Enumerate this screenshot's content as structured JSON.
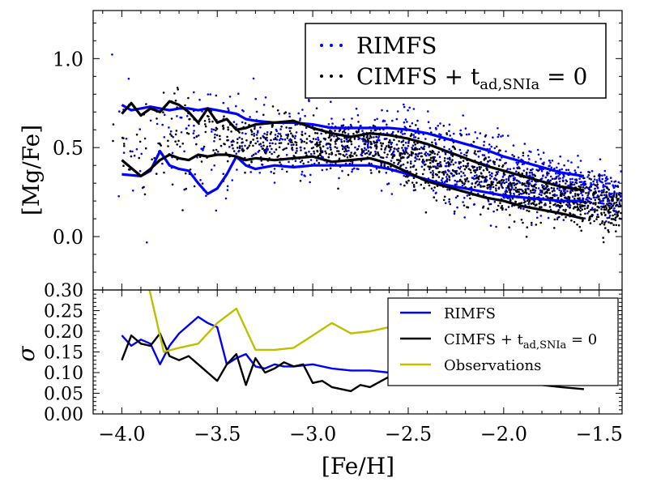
{
  "chart_data": [
    {
      "panel": "top",
      "type": "scatter",
      "xlabel": "[Fe/H]",
      "ylabel": "[Mg/Fe]",
      "xlim": [
        -4.15,
        -1.38
      ],
      "ylim": [
        -0.3,
        1.27
      ],
      "xticks": [
        -4.0,
        -3.5,
        -3.0,
        -2.5,
        -2.0,
        -1.5
      ],
      "yticks": [
        0.0,
        0.5,
        1.0
      ],
      "ytick_labels": [
        "0.0",
        "0.5",
        "1.0"
      ],
      "grid": false,
      "legend_position": "top-right",
      "series": [
        {
          "name": "RIMFS",
          "color": "#0000ff",
          "marker": "dots"
        },
        {
          "name": "CIMFS + t",
          "color": "#000000",
          "marker": "dots"
        }
      ],
      "trend_lines": [
        {
          "series": "RIMFS",
          "bound": "upper",
          "color": "#0000ff",
          "x": [
            -4.0,
            -3.95,
            -3.9,
            -3.85,
            -3.8,
            -3.75,
            -3.7,
            -3.65,
            -3.6,
            -3.55,
            -3.5,
            -3.45,
            -3.4,
            -3.35,
            -3.3,
            -3.2,
            -3.1,
            -3.0,
            -2.9,
            -2.8,
            -2.7,
            -2.6,
            -2.5,
            -2.4,
            -2.3,
            -2.2,
            -2.1,
            -2.0,
            -1.9,
            -1.8,
            -1.7,
            -1.58
          ],
          "y": [
            0.74,
            0.71,
            0.72,
            0.73,
            0.72,
            0.71,
            0.72,
            0.72,
            0.71,
            0.72,
            0.71,
            0.7,
            0.69,
            0.66,
            0.65,
            0.64,
            0.64,
            0.63,
            0.61,
            0.61,
            0.61,
            0.61,
            0.6,
            0.58,
            0.55,
            0.52,
            0.49,
            0.45,
            0.42,
            0.39,
            0.36,
            0.34
          ]
        },
        {
          "series": "RIMFS",
          "bound": "lower",
          "color": "#0000ff",
          "x": [
            -4.0,
            -3.9,
            -3.85,
            -3.8,
            -3.75,
            -3.7,
            -3.65,
            -3.6,
            -3.55,
            -3.5,
            -3.45,
            -3.4,
            -3.35,
            -3.3,
            -3.2,
            -3.1,
            -3.0,
            -2.9,
            -2.8,
            -2.7,
            -2.6,
            -2.5,
            -2.4,
            -2.3,
            -2.2,
            -2.1,
            -2.0,
            -1.9,
            -1.8,
            -1.7,
            -1.58
          ],
          "y": [
            0.35,
            0.34,
            0.37,
            0.48,
            0.4,
            0.38,
            0.37,
            0.3,
            0.24,
            0.27,
            0.35,
            0.45,
            0.4,
            0.38,
            0.4,
            0.39,
            0.4,
            0.4,
            0.4,
            0.4,
            0.38,
            0.35,
            0.32,
            0.29,
            0.27,
            0.25,
            0.23,
            0.22,
            0.21,
            0.2,
            0.2
          ]
        },
        {
          "series": "CIMFS + t",
          "bound": "upper",
          "color": "#000000",
          "x": [
            -4.0,
            -3.95,
            -3.9,
            -3.85,
            -3.8,
            -3.75,
            -3.7,
            -3.65,
            -3.6,
            -3.55,
            -3.5,
            -3.45,
            -3.4,
            -3.35,
            -3.3,
            -3.2,
            -3.1,
            -3.0,
            -2.9,
            -2.8,
            -2.7,
            -2.6,
            -2.5,
            -2.4,
            -2.3,
            -2.2,
            -2.1,
            -2.0,
            -1.9,
            -1.8,
            -1.7,
            -1.58
          ],
          "y": [
            0.69,
            0.75,
            0.68,
            0.72,
            0.7,
            0.76,
            0.74,
            0.7,
            0.64,
            0.72,
            0.64,
            0.66,
            0.6,
            0.61,
            0.63,
            0.64,
            0.65,
            0.61,
            0.58,
            0.56,
            0.58,
            0.57,
            0.55,
            0.52,
            0.48,
            0.44,
            0.4,
            0.37,
            0.34,
            0.31,
            0.28,
            0.26
          ]
        },
        {
          "series": "CIMFS + t",
          "bound": "lower",
          "color": "#000000",
          "x": [
            -4.0,
            -3.9,
            -3.85,
            -3.8,
            -3.75,
            -3.7,
            -3.65,
            -3.6,
            -3.55,
            -3.5,
            -3.45,
            -3.4,
            -3.35,
            -3.3,
            -3.2,
            -3.1,
            -3.0,
            -2.9,
            -2.8,
            -2.7,
            -2.6,
            -2.5,
            -2.4,
            -2.3,
            -2.2,
            -2.1,
            -2.0,
            -1.9,
            -1.8,
            -1.7,
            -1.58
          ],
          "y": [
            0.43,
            0.34,
            0.38,
            0.43,
            0.46,
            0.44,
            0.43,
            0.46,
            0.45,
            0.46,
            0.46,
            0.45,
            0.43,
            0.44,
            0.43,
            0.44,
            0.45,
            0.42,
            0.43,
            0.44,
            0.41,
            0.36,
            0.31,
            0.28,
            0.25,
            0.22,
            0.2,
            0.17,
            0.15,
            0.13,
            0.1
          ]
        }
      ]
    },
    {
      "panel": "bottom",
      "type": "line",
      "xlabel": "[Fe/H]",
      "ylabel": "σ",
      "xlim": [
        -4.15,
        -1.38
      ],
      "ylim": [
        0.0,
        0.3
      ],
      "xticks": [
        -4.0,
        -3.5,
        -3.0,
        -2.5,
        -2.0,
        -1.5
      ],
      "xtick_labels": [
        "−4.0",
        "−3.5",
        "−3.0",
        "−2.5",
        "−2.0",
        "−1.5"
      ],
      "yticks": [
        0.0,
        0.05,
        0.1,
        0.15,
        0.2,
        0.25,
        0.3
      ],
      "ytick_labels": [
        "0.00",
        "0.05",
        "0.10",
        "0.15",
        "0.20",
        "0.25",
        "0.30"
      ],
      "grid": false,
      "legend_position": "right",
      "series": [
        {
          "name": "RIMFS",
          "color": "#0000ff",
          "x": [
            -4.0,
            -3.95,
            -3.9,
            -3.85,
            -3.8,
            -3.75,
            -3.7,
            -3.65,
            -3.6,
            -3.55,
            -3.5,
            -3.45,
            -3.4,
            -3.35,
            -3.3,
            -3.25,
            -3.2,
            -3.15,
            -3.1,
            -3.0,
            -2.9,
            -2.8,
            -2.7,
            -2.6,
            -2.5,
            -2.4,
            -2.3,
            -2.2,
            -2.1,
            -2.0,
            -1.9,
            -1.8,
            -1.7,
            -1.58
          ],
          "y": [
            0.19,
            0.165,
            0.18,
            0.17,
            0.12,
            0.165,
            0.195,
            0.215,
            0.235,
            0.22,
            0.21,
            0.12,
            0.135,
            0.145,
            0.115,
            0.11,
            0.12,
            0.115,
            0.115,
            0.12,
            0.11,
            0.105,
            0.105,
            0.1,
            0.1,
            0.095,
            0.095,
            0.09,
            0.09,
            0.085,
            0.08,
            0.075,
            0.07,
            0.07
          ]
        },
        {
          "name": "CIMFS + t",
          "color": "#000000",
          "x": [
            -4.0,
            -3.95,
            -3.9,
            -3.85,
            -3.8,
            -3.75,
            -3.7,
            -3.65,
            -3.6,
            -3.55,
            -3.5,
            -3.45,
            -3.4,
            -3.35,
            -3.3,
            -3.25,
            -3.2,
            -3.15,
            -3.1,
            -3.05,
            -3.0,
            -2.95,
            -2.9,
            -2.85,
            -2.8,
            -2.75,
            -2.7,
            -2.6,
            -2.5,
            -2.4,
            -2.3,
            -2.2,
            -2.1,
            -2.0,
            -1.9,
            -1.8,
            -1.7,
            -1.58
          ],
          "y": [
            0.13,
            0.19,
            0.17,
            0.165,
            0.195,
            0.14,
            0.13,
            0.14,
            0.12,
            0.1,
            0.08,
            0.12,
            0.145,
            0.07,
            0.135,
            0.1,
            0.11,
            0.125,
            0.115,
            0.12,
            0.075,
            0.08,
            0.065,
            0.06,
            0.055,
            0.07,
            0.065,
            0.09,
            0.1,
            0.095,
            0.09,
            0.085,
            0.08,
            0.08,
            0.075,
            0.07,
            0.065,
            0.06
          ]
        },
        {
          "name": "Observations",
          "color": "#bfbf00",
          "x": [
            -3.86,
            -3.78,
            -3.7,
            -3.6,
            -3.5,
            -3.4,
            -3.3,
            -3.2,
            -3.1,
            -3.0,
            -2.9,
            -2.8,
            -2.7,
            -2.6
          ],
          "y": [
            0.31,
            0.15,
            0.16,
            0.17,
            0.22,
            0.255,
            0.155,
            0.155,
            0.16,
            0.19,
            0.22,
            0.195,
            0.2,
            0.21
          ]
        }
      ]
    }
  ],
  "legend_top": {
    "items": [
      {
        "label": "RIMFS",
        "color": "#0000ff"
      },
      {
        "label": "CIMFS + t",
        "sub": "ad,SNIa",
        "tail": " = 0",
        "color": "#000000"
      }
    ]
  },
  "legend_bottom": {
    "items": [
      {
        "label": "RIMFS",
        "color": "#0000ff"
      },
      {
        "label": "CIMFS + t",
        "sub": "ad,SNIa",
        "tail": " = 0",
        "color": "#000000"
      },
      {
        "label": "Observations",
        "color": "#bfbf00"
      }
    ]
  }
}
